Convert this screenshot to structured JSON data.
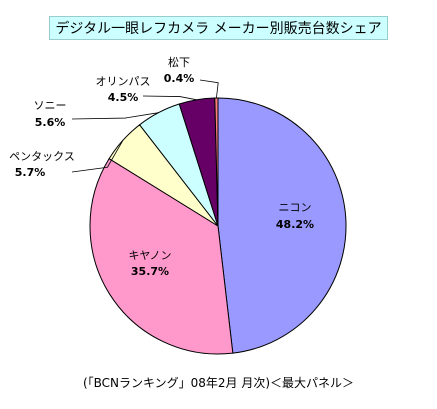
{
  "chart_data": {
    "type": "pie",
    "title": "デジタル一眼レフカメラ メーカー別販売台数シェア",
    "slices": [
      {
        "name": "ニコン",
        "value": 48.2,
        "label": "48.2%",
        "color": "#9999ff"
      },
      {
        "name": "キヤノン",
        "value": 35.7,
        "label": "35.7%",
        "color": "#ff99cc"
      },
      {
        "name": "ペンタックス",
        "value": 5.7,
        "label": "5.7%",
        "color": "#ffffcc"
      },
      {
        "name": "ソニー",
        "value": 5.6,
        "label": "5.6%",
        "color": "#ccffff"
      },
      {
        "name": "オリンパス",
        "value": 4.5,
        "label": "4.5%",
        "color": "#660066"
      },
      {
        "name": "松下",
        "value": 0.4,
        "label": "0.4%",
        "color": "#ff8080"
      }
    ],
    "source": "(「BCNランキング」08年2月 月次)＜最大パネル＞"
  }
}
